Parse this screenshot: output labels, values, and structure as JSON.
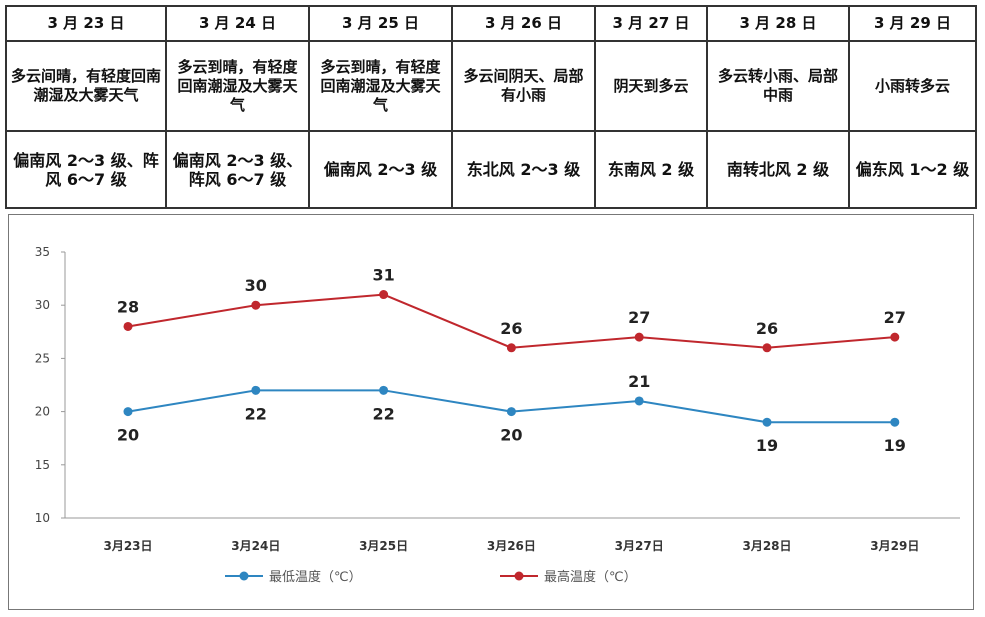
{
  "table": {
    "dates": [
      "3 月 23 日",
      "3 月 24 日",
      "3 月 25 日",
      "3 月 26 日",
      "3 月 27 日",
      "3 月 28 日",
      "3 月 29 日"
    ],
    "weather": [
      "多云间晴，有轻度回南潮湿及大雾天气",
      "多云到晴，有轻度回南潮湿及大雾天气",
      "多云到晴，有轻度回南潮湿及大雾天气",
      "多云间阴天、局部有小雨",
      "阴天到多云",
      "多云转小雨、局部中雨",
      "小雨转多云"
    ],
    "wind": [
      "偏南风 2～3 级、阵风 6～7 级",
      "偏南风 2～3 级、阵风 6～7 级",
      "偏南风 2～3 级",
      "东北风 2～3 级",
      "东南风 2 级",
      "南转北风 2 级",
      "偏东风 1～2 级"
    ]
  },
  "chart_data": {
    "type": "line",
    "categories": [
      "3月23日",
      "3月24日",
      "3月25日",
      "3月26日",
      "3月27日",
      "3月28日",
      "3月29日"
    ],
    "series": [
      {
        "name": "最低温度（℃）",
        "color": "#2e86c1",
        "values": [
          20,
          22,
          22,
          20,
          21,
          19,
          19
        ]
      },
      {
        "name": "最高温度（℃）",
        "color": "#c0272d",
        "values": [
          28,
          30,
          31,
          26,
          27,
          26,
          27
        ]
      }
    ],
    "yticks": [
      10,
      15,
      20,
      25,
      30,
      35
    ],
    "ylim": [
      10,
      35
    ],
    "legend": "bottom"
  }
}
